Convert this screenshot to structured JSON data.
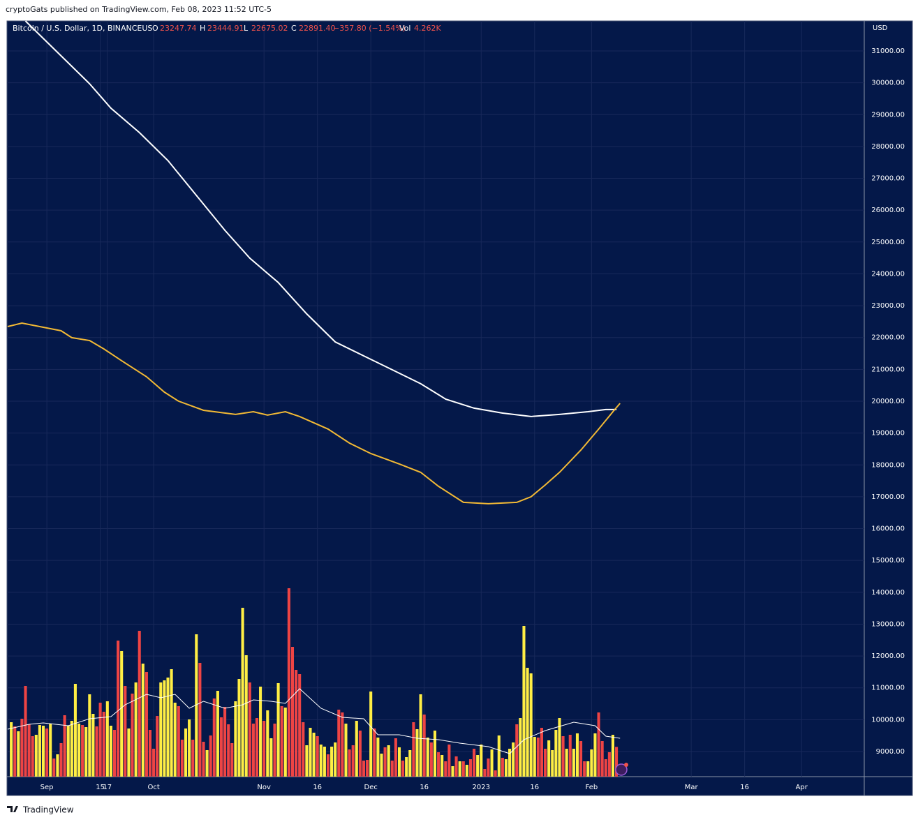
{
  "attribution": "cryptoGats published on TradingView.com, Feb 08, 2023 11:52 UTC-5",
  "brand": "TradingView",
  "chart_data": [
    {
      "type": "line",
      "title": "Bitcoin / U.S. Dollar, 1D, BINANCEUS",
      "quote": [
        [
          "O",
          "23247.74"
        ],
        [
          "H",
          "23444.91"
        ],
        [
          "L",
          "22675.02"
        ],
        [
          "C",
          "22891.40"
        ]
      ],
      "change": "−357.80 (−1.54%)",
      "volume_label": "Vol",
      "volume": "4.262K",
      "currency": "USD",
      "grid": true,
      "xlim": [
        -11.2,
        229.6
      ],
      "ylim": [
        8211,
        31942
      ],
      "yticks": [
        {
          "value": 9000,
          "label": "9000.00"
        },
        {
          "value": 10000,
          "label": "10000.00"
        },
        {
          "value": 11000,
          "label": "11000.00"
        },
        {
          "value": 12000,
          "label": "12000.00"
        },
        {
          "value": 13000,
          "label": "13000.00"
        },
        {
          "value": 14000,
          "label": "14000.00"
        },
        {
          "value": 15000,
          "label": "15000.00"
        },
        {
          "value": 16000,
          "label": "16000.00"
        },
        {
          "value": 17000,
          "label": "17000.00"
        },
        {
          "value": 18000,
          "label": "18000.00"
        },
        {
          "value": 19000,
          "label": "19000.00"
        },
        {
          "value": 20000,
          "label": "20000.00"
        },
        {
          "value": 21000,
          "label": "21000.00"
        },
        {
          "value": 22000,
          "label": "22000.00"
        },
        {
          "value": 23000,
          "label": "23000.00"
        },
        {
          "value": 24000,
          "label": "24000.00"
        },
        {
          "value": 25000,
          "label": "25000.00"
        },
        {
          "value": 26000,
          "label": "26000.00"
        },
        {
          "value": 27000,
          "label": "27000.00"
        },
        {
          "value": 28000,
          "label": "28000.00"
        },
        {
          "value": 29000,
          "label": "29000.00"
        },
        {
          "value": 30000,
          "label": "30000.00"
        },
        {
          "value": 31000,
          "label": "31000.00"
        }
      ],
      "series": [
        {
          "color": "#ffffff",
          "x": [
            -6,
            7,
            12,
            18,
            26,
            34,
            42,
            50,
            57,
            65,
            73,
            81,
            89,
            97,
            105,
            112,
            120,
            128,
            136,
            144,
            152,
            157,
            160
          ],
          "values": [
            31940,
            30518,
            29970,
            29203,
            28437,
            27560,
            26464,
            25369,
            24493,
            23726,
            22740,
            21863,
            21425,
            20987,
            20549,
            20067,
            19782,
            19628,
            19519,
            19585,
            19672,
            19738,
            19738
          ]
        },
        {
          "color": "#f2b935",
          "x": [
            -11,
            -7,
            -1,
            4,
            7,
            12,
            16,
            21,
            28,
            33,
            37,
            44,
            53,
            58,
            62,
            67,
            71,
            79,
            85,
            91,
            99,
            105,
            110,
            117,
            124,
            132,
            136,
            140,
            144,
            150,
            155,
            159,
            161
          ],
          "values": [
            22345,
            22455,
            22323,
            22214,
            21995,
            21907,
            21644,
            21272,
            20768,
            20286,
            20001,
            19716,
            19585,
            19672,
            19563,
            19672,
            19519,
            19125,
            18686,
            18357,
            18029,
            17766,
            17328,
            16824,
            16780,
            16824,
            17000,
            17372,
            17766,
            18467,
            19125,
            19672,
            19935
          ]
        }
      ]
    },
    {
      "type": "bar",
      "xlim": [
        -11.2,
        229.6
      ],
      "ylim": [
        0,
        40
      ],
      "xticks": [
        {
          "value": 0,
          "label": "Sep"
        },
        15,
        {
          "value": 30,
          "label": "Oct"
        },
        17,
        {
          "value": 61,
          "label": "Nov"
        },
        {
          "value": 76,
          "label": "16"
        },
        {
          "value": 91,
          "label": "Dec"
        },
        {
          "value": 106,
          "label": "16"
        },
        {
          "value": 122,
          "label": "2023"
        },
        {
          "value": 137,
          "label": "16"
        },
        {
          "value": 153,
          "label": "Feb"
        },
        {
          "value": 181,
          "label": "Mar"
        },
        {
          "value": 196,
          "label": "16"
        },
        {
          "value": 212,
          "label": "Apr"
        }
      ],
      "x": [
        -10,
        -9,
        -8,
        -7,
        -6,
        -5,
        -4,
        -3,
        -2,
        -1,
        0,
        1,
        2,
        3,
        4,
        5,
        6,
        7,
        8,
        9,
        10,
        11,
        12,
        13,
        14,
        15,
        16,
        17,
        18,
        19,
        20,
        21,
        22,
        23,
        24,
        25,
        26,
        27,
        28,
        29,
        30,
        31,
        32,
        33,
        34,
        35,
        36,
        37,
        38,
        39,
        40,
        41,
        42,
        43,
        44,
        45,
        46,
        47,
        48,
        49,
        50,
        51,
        52,
        53,
        54,
        55,
        56,
        57,
        58,
        59,
        60,
        61,
        62,
        63,
        64,
        65,
        66,
        67,
        68,
        69,
        70,
        71,
        72,
        73,
        74,
        75,
        76,
        77,
        78,
        79,
        80,
        81,
        82,
        83,
        84,
        85,
        86,
        87,
        88,
        89,
        90,
        91,
        92,
        93,
        94,
        95,
        96,
        97,
        98,
        99,
        100,
        101,
        102,
        103,
        104,
        105,
        106,
        107,
        108,
        109,
        110,
        111,
        112,
        113,
        114,
        115,
        116,
        117,
        118,
        119,
        120,
        121,
        122,
        123,
        124,
        125,
        126,
        127,
        128,
        129,
        130,
        131,
        132,
        133,
        134,
        135,
        136,
        137,
        138,
        139,
        140,
        141,
        142,
        143,
        144,
        145,
        146,
        147,
        148,
        149,
        150,
        151,
        152,
        153,
        154,
        155,
        156,
        157,
        158,
        159,
        160
      ],
      "values": [
        7.8,
        7.2,
        6.5,
        8.3,
        13.0,
        7.5,
        5.8,
        6.0,
        7.4,
        7.3,
        6.9,
        7.6,
        2.6,
        3.2,
        4.8,
        8.8,
        7.3,
        8.0,
        13.3,
        7.6,
        7.4,
        7.1,
        11.8,
        9.0,
        7.2,
        10.6,
        9.3,
        10.8,
        7.3,
        6.7,
        19.5,
        18.0,
        13.0,
        6.9,
        11.9,
        13.5,
        20.9,
        16.2,
        15.0,
        6.7,
        4.0,
        8.7,
        13.5,
        13.8,
        14.2,
        15.4,
        10.6,
        10.1,
        5.3,
        6.9,
        8.2,
        5.3,
        20.4,
        16.3,
        5.0,
        3.8,
        5.9,
        11.2,
        12.3,
        8.5,
        10.0,
        7.5,
        4.8,
        10.8,
        14.0,
        24.2,
        17.4,
        13.5,
        7.6,
        8.4,
        12.9,
        8.0,
        9.5,
        5.5,
        7.6,
        13.4,
        10.1,
        9.9,
        27.0,
        18.6,
        15.3,
        14.7,
        7.8,
        4.5,
        7.0,
        6.3,
        5.8,
        4.6,
        4.3,
        3.2,
        4.3,
        4.9,
        9.6,
        9.2,
        7.6,
        3.9,
        4.5,
        8.0,
        6.6,
        2.3,
        2.4,
        12.2,
        6.9,
        5.6,
        3.3,
        4.2,
        4.5,
        2.3,
        5.5,
        4.2,
        2.3,
        2.8,
        3.8,
        7.8,
        6.8,
        11.8,
        8.9,
        5.6,
        4.9,
        6.6,
        3.5,
        3.1,
        2.2,
        4.6,
        1.5,
        2.9,
        2.2,
        2.2,
        1.7,
        2.5,
        4.0,
        3.1,
        4.6,
        1.1,
        2.6,
        3.9,
        0.9,
        5.9,
        2.7,
        2.5,
        4.0,
        4.9,
        7.5,
        8.4,
        21.6,
        15.6,
        14.8,
        5.7,
        5.6,
        7.0,
        4.0,
        5.2,
        3.8,
        6.7,
        8.4,
        5.8,
        4.0,
        6.0,
        4.0,
        6.2,
        5.1,
        2.2,
        2.2,
        3.9,
        6.2,
        9.2,
        5.1,
        2.5,
        3.5,
        6.0,
        4.262
      ],
      "colors": [
        "#fe4",
        "#e44",
        "#fe4",
        "#e44",
        "#e44",
        "#e44",
        "#e44",
        "#fe4",
        "#fe4",
        "#fe4",
        "#e44",
        "#fe4",
        "#e44",
        "#fe4",
        "#e44",
        "#e44",
        "#fe4",
        "#fe4",
        "#fe4",
        "#fe4",
        "#e44",
        "#fe4",
        "#fe4",
        "#fe4",
        "#e44",
        "#e44",
        "#e44",
        "#fe4",
        "#fe4",
        "#e44",
        "#e44",
        "#fe4",
        "#e44",
        "#fe4",
        "#e44",
        "#fe4",
        "#e44",
        "#fe4",
        "#e44",
        "#e44",
        "#e44",
        "#e44",
        "#fe4",
        "#fe4",
        "#fe4",
        "#fe4",
        "#fe4",
        "#e44",
        "#e44",
        "#fe4",
        "#fe4",
        "#e44",
        "#fe4",
        "#e44",
        "#e44",
        "#fe4",
        "#e44",
        "#e44",
        "#fe4",
        "#e44",
        "#e44",
        "#e44",
        "#e44",
        "#fe4",
        "#fe4",
        "#fe4",
        "#fe4",
        "#e44",
        "#e44",
        "#e44",
        "#fe4",
        "#e44",
        "#fe4",
        "#fe4",
        "#e44",
        "#fe4",
        "#e44",
        "#fe4",
        "#e44",
        "#e44",
        "#e44",
        "#e44",
        "#e44",
        "#fe4",
        "#fe4",
        "#fe4",
        "#e44",
        "#fe4",
        "#fe4",
        "#e44",
        "#fe4",
        "#fe4",
        "#e44",
        "#e44",
        "#fe4",
        "#e44",
        "#e44",
        "#fe4",
        "#e44",
        "#e44",
        "#e44",
        "#fe4",
        "#e44",
        "#fe4",
        "#fe4",
        "#e44",
        "#fe4",
        "#e44",
        "#e44",
        "#fe4",
        "#e44",
        "#fe4",
        "#fe4",
        "#e44",
        "#fe4",
        "#fe4",
        "#e44",
        "#fe4",
        "#e44",
        "#fe4",
        "#e44",
        "#fe4",
        "#e44",
        "#e44",
        "#fe4",
        "#e44",
        "#fe4",
        "#e44",
        "#fe4",
        "#e44",
        "#e44",
        "#fe4",
        "#fe4",
        "#e44",
        "#e44",
        "#fe4",
        "#e44",
        "#fe4",
        "#e44",
        "#fe4",
        "#fe4",
        "#fe4",
        "#e44",
        "#fe4",
        "#fe4",
        "#fe4",
        "#fe4",
        "#fe4",
        "#e44",
        "#e44",
        "#e44",
        "#fe4",
        "#fe4",
        "#fe4",
        "#fe4",
        "#e44",
        "#fe4",
        "#e44",
        "#fe4",
        "#fe4",
        "#e44",
        "#e44",
        "#fe4",
        "#fe4",
        "#fe4",
        "#e44",
        "#e44",
        "#e44",
        "#e44",
        "#fe4",
        "#e44"
      ],
      "series": [
        {
          "color": "#ffffff",
          "x": [
            -11,
            -5,
            -1,
            6,
            12,
            18,
            22,
            28,
            32,
            36,
            40,
            44,
            50,
            55,
            58,
            63,
            67,
            71,
            77,
            83,
            89,
            93,
            99,
            104,
            110,
            116,
            124,
            130,
            134,
            140,
            148,
            154,
            157,
            161
          ],
          "values": [
            6.8,
            7.5,
            7.7,
            7.3,
            8.3,
            8.6,
            10.3,
            11.8,
            11.3,
            11.8,
            9.8,
            10.8,
            9.8,
            10.3,
            11.0,
            10.8,
            10.5,
            12.6,
            9.8,
            8.5,
            8.3,
            6.0,
            6.0,
            5.5,
            5.3,
            4.8,
            4.3,
            3.3,
            5.3,
            6.6,
            7.8,
            7.3,
            5.8,
            5.5
          ]
        }
      ]
    }
  ]
}
